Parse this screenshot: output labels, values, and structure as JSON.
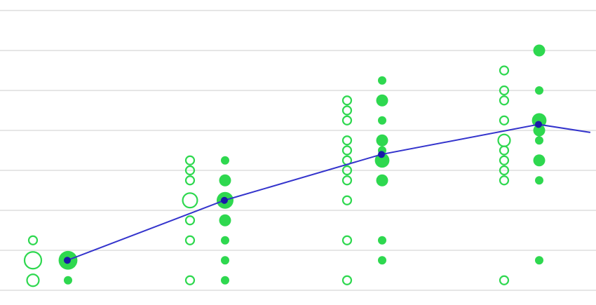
{
  "chart_data": {
    "type": "scatter",
    "title": "",
    "xlabel": "",
    "ylabel": "",
    "x_groups": [
      1,
      2,
      3,
      4
    ],
    "ylim": [
      0,
      7
    ],
    "y_gridlines": [
      0,
      1,
      2,
      3,
      4,
      5,
      6,
      7
    ],
    "grid": true,
    "colors": {
      "points": "#2ed84f",
      "line": "#3333cc",
      "line_marker": "#1a1aa8",
      "grid": "#d6d6d6"
    },
    "series": [
      {
        "style": "hollow",
        "points": [
          {
            "x": 1,
            "y": 0.25,
            "count": 2
          },
          {
            "x": 1,
            "y": 0.75,
            "count": 4
          },
          {
            "x": 1,
            "y": 1.25,
            "count": 1
          },
          {
            "x": 2,
            "y": 0.25,
            "count": 1
          },
          {
            "x": 2,
            "y": 1.25,
            "count": 1
          },
          {
            "x": 2,
            "y": 1.75,
            "count": 1
          },
          {
            "x": 2,
            "y": 2.25,
            "count": 3
          },
          {
            "x": 2,
            "y": 2.75,
            "count": 1
          },
          {
            "x": 2,
            "y": 3.0,
            "count": 1
          },
          {
            "x": 2,
            "y": 3.25,
            "count": 1
          },
          {
            "x": 3,
            "y": 0.25,
            "count": 1
          },
          {
            "x": 3,
            "y": 1.25,
            "count": 1
          },
          {
            "x": 3,
            "y": 2.25,
            "count": 1
          },
          {
            "x": 3,
            "y": 2.75,
            "count": 1
          },
          {
            "x": 3,
            "y": 3.0,
            "count": 1
          },
          {
            "x": 3,
            "y": 3.25,
            "count": 1
          },
          {
            "x": 3,
            "y": 3.5,
            "count": 1
          },
          {
            "x": 3,
            "y": 3.75,
            "count": 1
          },
          {
            "x": 3,
            "y": 4.25,
            "count": 1
          },
          {
            "x": 3,
            "y": 4.5,
            "count": 1
          },
          {
            "x": 3,
            "y": 4.75,
            "count": 1
          },
          {
            "x": 4,
            "y": 0.25,
            "count": 1
          },
          {
            "x": 4,
            "y": 2.75,
            "count": 1
          },
          {
            "x": 4,
            "y": 3.0,
            "count": 1
          },
          {
            "x": 4,
            "y": 3.25,
            "count": 1
          },
          {
            "x": 4,
            "y": 3.5,
            "count": 1
          },
          {
            "x": 4,
            "y": 3.75,
            "count": 2
          },
          {
            "x": 4,
            "y": 4.25,
            "count": 1
          },
          {
            "x": 4,
            "y": 4.75,
            "count": 1
          },
          {
            "x": 4,
            "y": 5.0,
            "count": 1
          },
          {
            "x": 4,
            "y": 5.5,
            "count": 1
          }
        ]
      },
      {
        "style": "filled",
        "points": [
          {
            "x": 1,
            "y": 0.25,
            "count": 1
          },
          {
            "x": 1,
            "y": 0.75,
            "count": 5
          },
          {
            "x": 2,
            "y": 0.25,
            "count": 1
          },
          {
            "x": 2,
            "y": 0.75,
            "count": 1
          },
          {
            "x": 2,
            "y": 1.25,
            "count": 1
          },
          {
            "x": 2,
            "y": 1.75,
            "count": 2
          },
          {
            "x": 2,
            "y": 2.25,
            "count": 4
          },
          {
            "x": 2,
            "y": 2.75,
            "count": 2
          },
          {
            "x": 2,
            "y": 3.25,
            "count": 1
          },
          {
            "x": 3,
            "y": 0.75,
            "count": 1
          },
          {
            "x": 3,
            "y": 1.25,
            "count": 1
          },
          {
            "x": 3,
            "y": 2.75,
            "count": 2
          },
          {
            "x": 3,
            "y": 3.25,
            "count": 3
          },
          {
            "x": 3,
            "y": 3.5,
            "count": 1
          },
          {
            "x": 3,
            "y": 3.75,
            "count": 2
          },
          {
            "x": 3,
            "y": 4.25,
            "count": 1
          },
          {
            "x": 3,
            "y": 4.75,
            "count": 2
          },
          {
            "x": 3,
            "y": 5.25,
            "count": 1
          },
          {
            "x": 4,
            "y": 0.75,
            "count": 1
          },
          {
            "x": 4,
            "y": 2.75,
            "count": 1
          },
          {
            "x": 4,
            "y": 3.25,
            "count": 2
          },
          {
            "x": 4,
            "y": 3.75,
            "count": 1
          },
          {
            "x": 4,
            "y": 4.0,
            "count": 2
          },
          {
            "x": 4,
            "y": 4.25,
            "count": 3
          },
          {
            "x": 4,
            "y": 5.0,
            "count": 1
          },
          {
            "x": 4,
            "y": 6.0,
            "count": 2
          }
        ]
      }
    ],
    "trend_line": {
      "points": [
        {
          "x": 1,
          "y": 0.75
        },
        {
          "x": 2,
          "y": 2.25
        },
        {
          "x": 3,
          "y": 3.4
        },
        {
          "x": 4,
          "y": 4.15
        },
        {
          "x": 4.33,
          "y": 3.95
        }
      ]
    }
  }
}
